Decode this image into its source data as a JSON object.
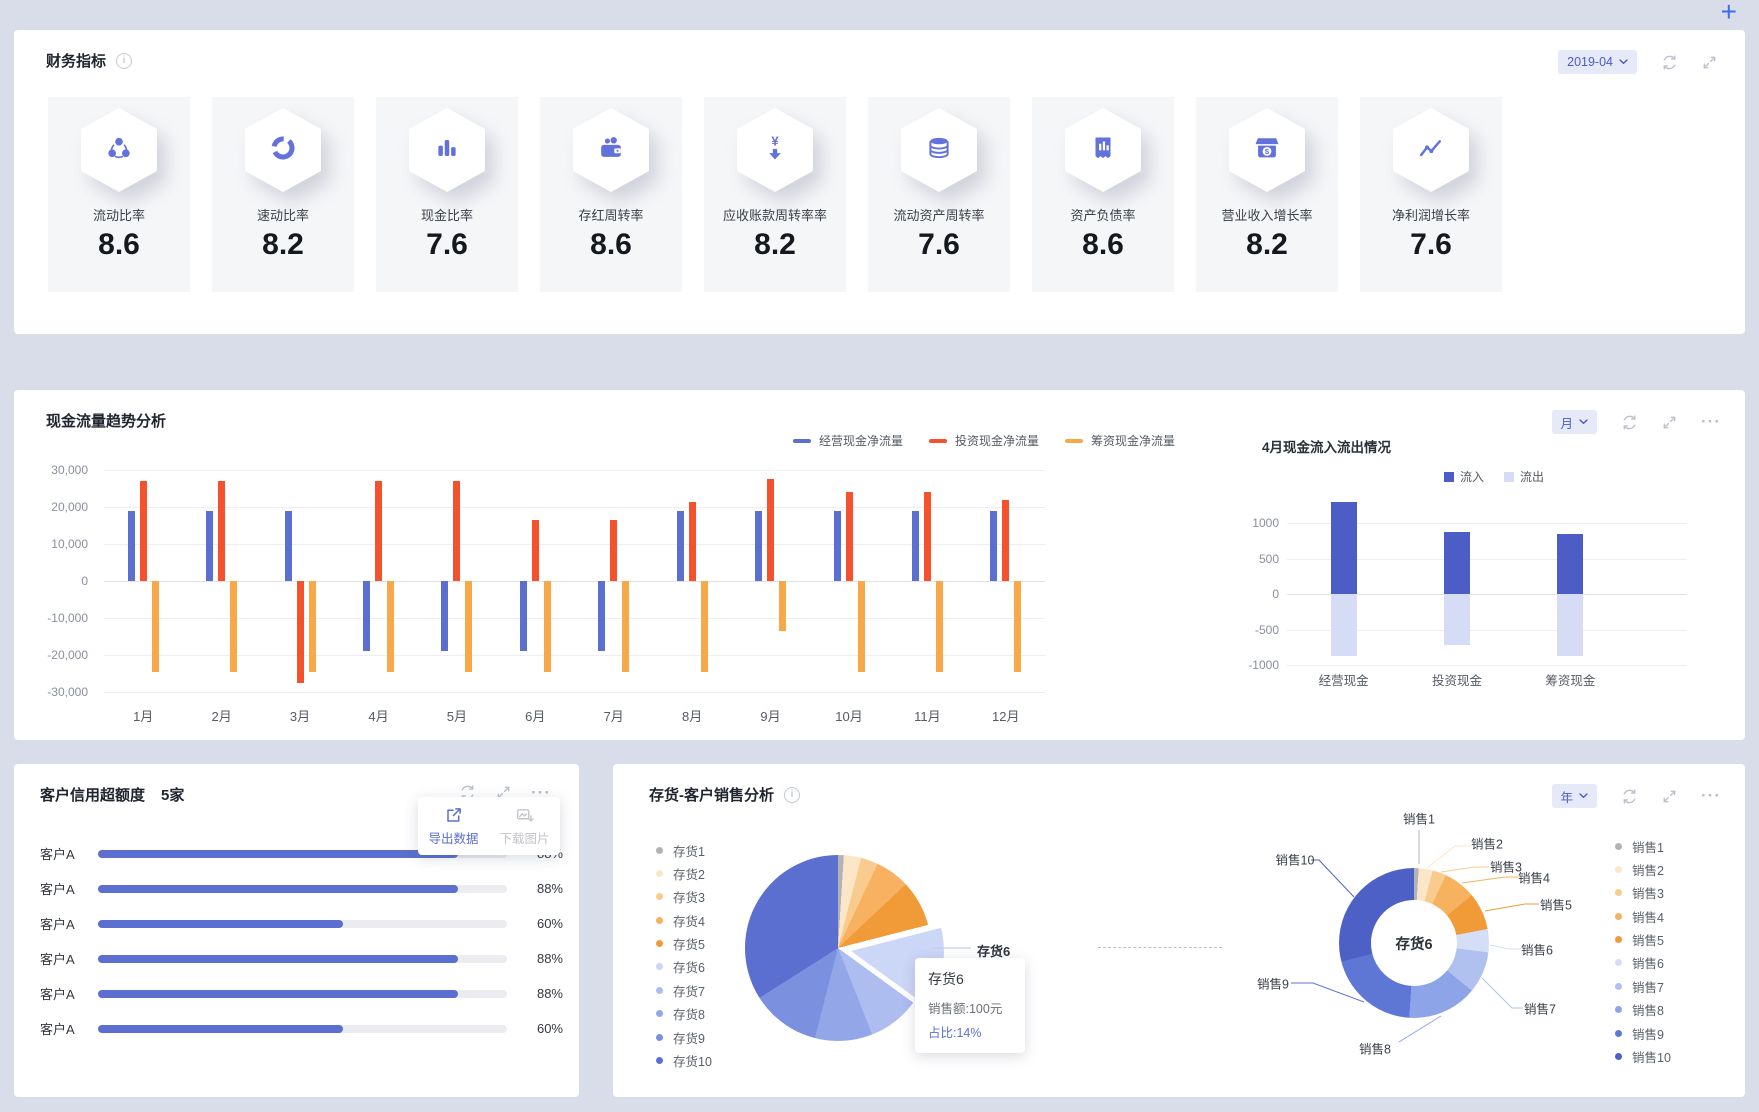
{
  "page": {
    "add_button": "+"
  },
  "financial_panel": {
    "title": "财务指标",
    "date_selector": "2019-04",
    "cards": [
      {
        "icon": "share-nodes-icon",
        "label": "流动比率",
        "value": "8.6"
      },
      {
        "icon": "donut-ring-icon",
        "label": "速动比率",
        "value": "8.2"
      },
      {
        "icon": "bar-chart-icon",
        "label": "现金比率",
        "value": "7.6"
      },
      {
        "icon": "coin-purse-icon",
        "label": "存红周转率",
        "value": "8.6"
      },
      {
        "icon": "yen-arrow-down-icon",
        "label": "应收账款周转率率",
        "value": "8.2"
      },
      {
        "icon": "coin-stack-icon",
        "label": "流动资产周转率",
        "value": "7.6"
      },
      {
        "icon": "invoice-chart-icon",
        "label": "资产负债率",
        "value": "8.6"
      },
      {
        "icon": "storefront-icon",
        "label": "营业收入增长率",
        "value": "8.2"
      },
      {
        "icon": "trend-line-icon",
        "label": "净利润增长率",
        "value": "7.6"
      }
    ]
  },
  "cashflow_panel": {
    "title": "现金流量趋势分析",
    "period_selector": "月",
    "sub_chart_title": "4月现金流入流出情况"
  },
  "credit_panel": {
    "title": "客户信用超额度",
    "count": "5家",
    "menu": {
      "export_label": "导出数据",
      "download_label": "下载图片"
    }
  },
  "inventory_panel": {
    "title": "存货-客户销售分析",
    "period_selector": "年",
    "pie_callout": "存货6",
    "donut_center": "存货6",
    "tooltip": {
      "title": "存货6",
      "sales_line": "销售额:100元",
      "share_line": "占比:14%"
    }
  },
  "chart_data": [
    {
      "id": "cashflow_trend",
      "type": "bar",
      "title": "现金流量趋势分析",
      "categories": [
        "1月",
        "2月",
        "3月",
        "4月",
        "5月",
        "6月",
        "7月",
        "8月",
        "9月",
        "10月",
        "11月",
        "12月"
      ],
      "series": [
        {
          "name": "经营现金净流量",
          "color": "#5B6FD0",
          "values": [
            19000,
            19000,
            19000,
            -19000,
            -19000,
            -19000,
            -19000,
            19000,
            19000,
            19000,
            19000,
            19000
          ]
        },
        {
          "name": "投资现金净流量",
          "color": "#F4512C",
          "values": [
            27000,
            27000,
            -27500,
            27000,
            27000,
            16500,
            16500,
            21500,
            27500,
            24000,
            24000,
            22000
          ]
        },
        {
          "name": "筹资现金净流量",
          "color": "#F7A848",
          "values": [
            -24500,
            -24500,
            -24500,
            -24500,
            -24500,
            -24500,
            -24500,
            -24500,
            -13500,
            -24500,
            -24500,
            -24500
          ]
        }
      ],
      "ylim": [
        -30000,
        30000
      ],
      "yticks": [
        "30,000",
        "20,000",
        "10,000",
        "0",
        "-10,000",
        "-20,000",
        "-30,000"
      ],
      "legend_position": "top",
      "grid": true
    },
    {
      "id": "april_inout",
      "type": "bar",
      "title": "4月现金流入流出情况",
      "categories": [
        "经营现金",
        "投资现金",
        "筹资现金"
      ],
      "series": [
        {
          "name": "流入",
          "color": "#4C5DC6",
          "values": [
            1300,
            880,
            840
          ]
        },
        {
          "name": "流出",
          "color": "#D6DCF5",
          "values": [
            -870,
            -720,
            -870
          ]
        }
      ],
      "ylim": [
        -1100,
        1500
      ],
      "yticks": [
        1000,
        500,
        0,
        -500,
        -1000
      ],
      "legend_position": "top-right",
      "grid": true
    },
    {
      "id": "credit_overlimit",
      "type": "bar",
      "orientation": "horizontal",
      "categories": [
        "客户A",
        "客户A",
        "客户A",
        "客户A",
        "客户A",
        "客户A"
      ],
      "values": [
        88,
        88,
        60,
        88,
        88,
        60
      ],
      "value_labels": [
        "88%",
        "88%",
        "60%",
        "88%",
        "88%",
        "60%"
      ],
      "xlim": [
        0,
        100
      ],
      "bar_color": "#5B6FD0"
    },
    {
      "id": "inventory_pie",
      "type": "pie",
      "labels": [
        "存货1",
        "存货2",
        "存货3",
        "存货4",
        "存货5",
        "存货6",
        "存货7",
        "存货8",
        "存货9",
        "存货10"
      ],
      "values": [
        1,
        3,
        3,
        6,
        8,
        14,
        9,
        10,
        12,
        34
      ],
      "colors": [
        "#B3B3B6",
        "#FBE7C8",
        "#F9CB8E",
        "#F7B160",
        "#F09A38",
        "#CCD6F6",
        "#AEBDF0",
        "#93A6E8",
        "#7B90DE",
        "#5B6FD0"
      ],
      "highlighted": "存货6",
      "legend_position": "left"
    },
    {
      "id": "sales_donut",
      "type": "pie",
      "donut": true,
      "center_label": "存货6",
      "labels": [
        "销售1",
        "销售2",
        "销售3",
        "销售4",
        "销售5",
        "销售6",
        "销售7",
        "销售8",
        "销售9",
        "销售10"
      ],
      "values": [
        1,
        3,
        3,
        7,
        8,
        5,
        9,
        15,
        20,
        29
      ],
      "colors": [
        "#B3B3B6",
        "#FBE7C8",
        "#F9CB8E",
        "#F7B25F",
        "#F09A38",
        "#D4DEF6",
        "#B0C1F0",
        "#8EA4E8",
        "#5F77D4",
        "#4C60C6"
      ],
      "legend_position": "right"
    }
  ]
}
